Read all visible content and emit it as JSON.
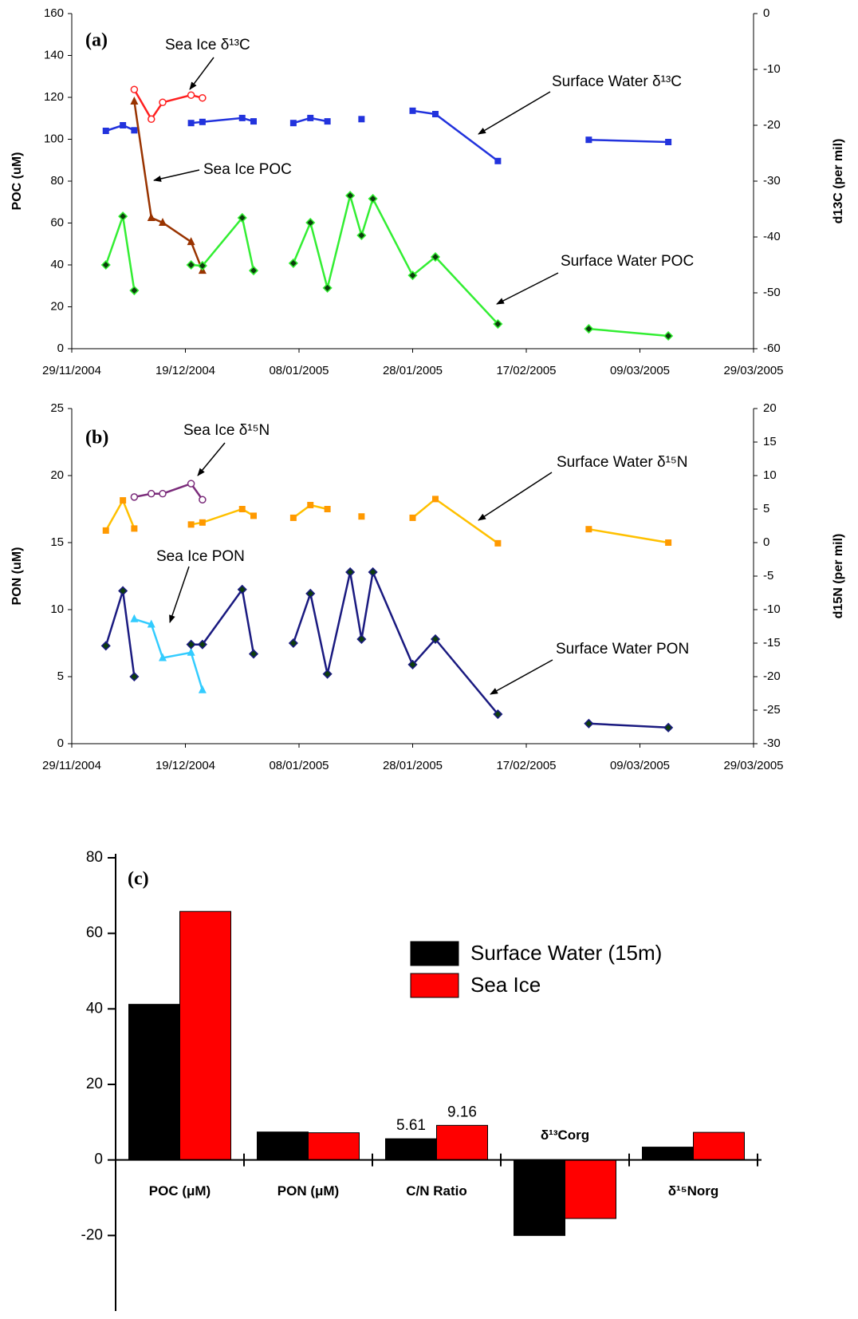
{
  "chart_data": [
    {
      "type": "line",
      "panel_label": "(a)",
      "ylabel": "POC (uM)",
      "y2label": "d13C (per mil)",
      "xlim": [
        "29/11/2004",
        "29/03/2005"
      ],
      "xticks": [
        "29/11/2004",
        "19/12/2004",
        "08/01/2005",
        "28/01/2005",
        "17/02/2005",
        "09/03/2005",
        "29/03/2005"
      ],
      "ylim": [
        0,
        160
      ],
      "yticks": [
        0,
        20,
        40,
        60,
        80,
        100,
        120,
        140,
        160
      ],
      "y2lim": [
        -60,
        0
      ],
      "y2ticks": [
        -60,
        -50,
        -40,
        -30,
        -20,
        -10,
        0
      ],
      "series": [
        {
          "name": "Sea Ice δ¹³C",
          "color": "#ff2020",
          "marker": "circle-open",
          "axis": "y2",
          "x": [
            "10/12/2004",
            "13/12/2004",
            "15/12/2004",
            "20/12/2004",
            "22/12/2004"
          ],
          "values": [
            -13.6,
            -18.9,
            -15.9,
            -14.6,
            -15.1
          ]
        },
        {
          "name": "Surface Water δ¹³C",
          "color": "#2233dd",
          "marker": "square",
          "axis": "y2",
          "x": [
            "05/12/2004",
            "08/12/2004",
            "10/12/2004",
            null,
            "20/12/2004",
            "22/12/2004",
            "29/12/2004",
            "31/12/2004",
            null,
            "07/01/2005",
            "10/01/2005",
            "13/01/2005",
            null,
            "19/01/2005",
            null,
            "28/01/2005",
            "01/02/2005",
            "12/02/2005",
            null,
            "28/02/2005",
            "14/03/2005"
          ],
          "values": [
            -21.0,
            -20.0,
            -20.9,
            null,
            -19.6,
            -19.4,
            -18.7,
            -19.3,
            null,
            -19.6,
            -18.7,
            -19.3,
            null,
            -18.9,
            null,
            -17.4,
            -18.0,
            -26.4,
            null,
            -22.6,
            -23.0
          ]
        },
        {
          "name": "Sea Ice POC",
          "color": "#993300",
          "marker": "triangle",
          "x": [
            "10/12/2004",
            "13/12/2004",
            "15/12/2004",
            "20/12/2004",
            "22/12/2004"
          ],
          "values": [
            118.1,
            62.5,
            60.2,
            51,
            37.3
          ]
        },
        {
          "name": "Surface Water POC",
          "color": "#33ee33",
          "marker": "diamond",
          "x": [
            "05/12/2004",
            "08/12/2004",
            "10/12/2004",
            null,
            "20/12/2004",
            "22/12/2004",
            "29/12/2004",
            "31/12/2004",
            null,
            "07/01/2005",
            "10/01/2005",
            "13/01/2005",
            "17/01/2005",
            "19/01/2005",
            "21/01/2005",
            "28/01/2005",
            "01/02/2005",
            "12/02/2005",
            null,
            "28/02/2005",
            "14/03/2005"
          ],
          "values": [
            40,
            63.2,
            27.8,
            null,
            40,
            39.6,
            62.5,
            37.3,
            null,
            40.8,
            60.2,
            29,
            73.1,
            54.1,
            71.6,
            35,
            43.8,
            11.8,
            null,
            9.5,
            6.1
          ]
        }
      ]
    },
    {
      "type": "line",
      "panel_label": "(b)",
      "ylabel": "PON (uM)",
      "y2label": "d15N (per mil)",
      "xlim": [
        "29/11/2004",
        "29/03/2005"
      ],
      "xticks": [
        "29/11/2004",
        "19/12/2004",
        "08/01/2005",
        "28/01/2005",
        "17/02/2005",
        "09/03/2005",
        "29/03/2005"
      ],
      "ylim": [
        0,
        25
      ],
      "yticks": [
        0,
        5,
        10,
        15,
        20,
        25
      ],
      "y2lim": [
        -30,
        20
      ],
      "y2ticks": [
        -30,
        -25,
        -20,
        -15,
        -10,
        -5,
        0,
        5,
        10,
        15,
        20
      ],
      "series": [
        {
          "name": "Sea Ice δ¹⁵N",
          "color": "#7b2c7b",
          "marker": "circle-open",
          "axis": "y2",
          "x": [
            "10/12/2004",
            "13/12/2004",
            "15/12/2004",
            "20/12/2004",
            "22/12/2004"
          ],
          "values": [
            6.8,
            7.3,
            7.3,
            8.8,
            6.4
          ]
        },
        {
          "name": "Surface Water δ¹⁵N",
          "color": "#ffc000",
          "marker_color": "#ff9900",
          "marker": "square",
          "axis": "y2",
          "x": [
            "05/12/2004",
            "08/12/2004",
            "10/12/2004",
            null,
            "20/12/2004",
            "22/12/2004",
            "29/12/2004",
            "31/12/2004",
            null,
            "07/01/2005",
            "10/01/2005",
            "13/01/2005",
            null,
            "19/01/2005",
            null,
            "28/01/2005",
            "01/02/2005",
            "12/02/2005",
            null,
            "28/02/2005",
            "14/03/2005"
          ],
          "values": [
            1.8,
            6.3,
            2.1,
            null,
            2.7,
            3.0,
            5.0,
            4.0,
            null,
            3.7,
            5.6,
            5.0,
            null,
            3.9,
            null,
            3.7,
            6.5,
            -0.1,
            null,
            2.0,
            0
          ]
        },
        {
          "name": "Sea Ice PON",
          "color": "#33ccff",
          "marker": "triangle",
          "x": [
            "10/12/2004",
            "13/12/2004",
            "15/12/2004",
            "20/12/2004",
            "22/12/2004"
          ],
          "values": [
            9.3,
            8.9,
            6.4,
            6.8,
            4.0
          ]
        },
        {
          "name": "Surface Water PON",
          "color": "#1a1a80",
          "marker": "diamond",
          "x": [
            "05/12/2004",
            "08/12/2004",
            "10/12/2004",
            null,
            "20/12/2004",
            "22/12/2004",
            "29/12/2004",
            "31/12/2004",
            null,
            "07/01/2005",
            "10/01/2005",
            "13/01/2005",
            "17/01/2005",
            "19/01/2005",
            "21/01/2005",
            "28/01/2005",
            "01/02/2005",
            "12/02/2005",
            null,
            "28/02/2005",
            "14/03/2005"
          ],
          "values": [
            7.3,
            11.4,
            5.0,
            null,
            7.4,
            7.4,
            11.5,
            6.7,
            null,
            7.5,
            11.2,
            5.2,
            12.8,
            7.8,
            12.8,
            5.9,
            7.8,
            2.2,
            null,
            1.5,
            1.2
          ]
        }
      ]
    },
    {
      "type": "bar",
      "panel_label": "(c)",
      "legend": "upper right",
      "categories": [
        "POC (μM)",
        "PON (μM)",
        "C/N Ratio",
        "δ¹³Corg",
        "δ¹⁵Norg"
      ],
      "ylim": [
        -40,
        80
      ],
      "yticks": [
        -20,
        0,
        20,
        40,
        60,
        80
      ],
      "series": [
        {
          "name": "Surface Water (15m)",
          "color": "#000000",
          "values": [
            41.2,
            7.4,
            5.61,
            -20,
            3.4
          ],
          "value_labels": [
            null,
            null,
            "5.61",
            null,
            null
          ]
        },
        {
          "name": "Sea Ice",
          "color": "#ff0000",
          "values": [
            65.8,
            7.2,
            9.16,
            -15.5,
            7.3
          ],
          "value_labels": [
            null,
            null,
            "9.16",
            null,
            null
          ]
        }
      ]
    }
  ]
}
